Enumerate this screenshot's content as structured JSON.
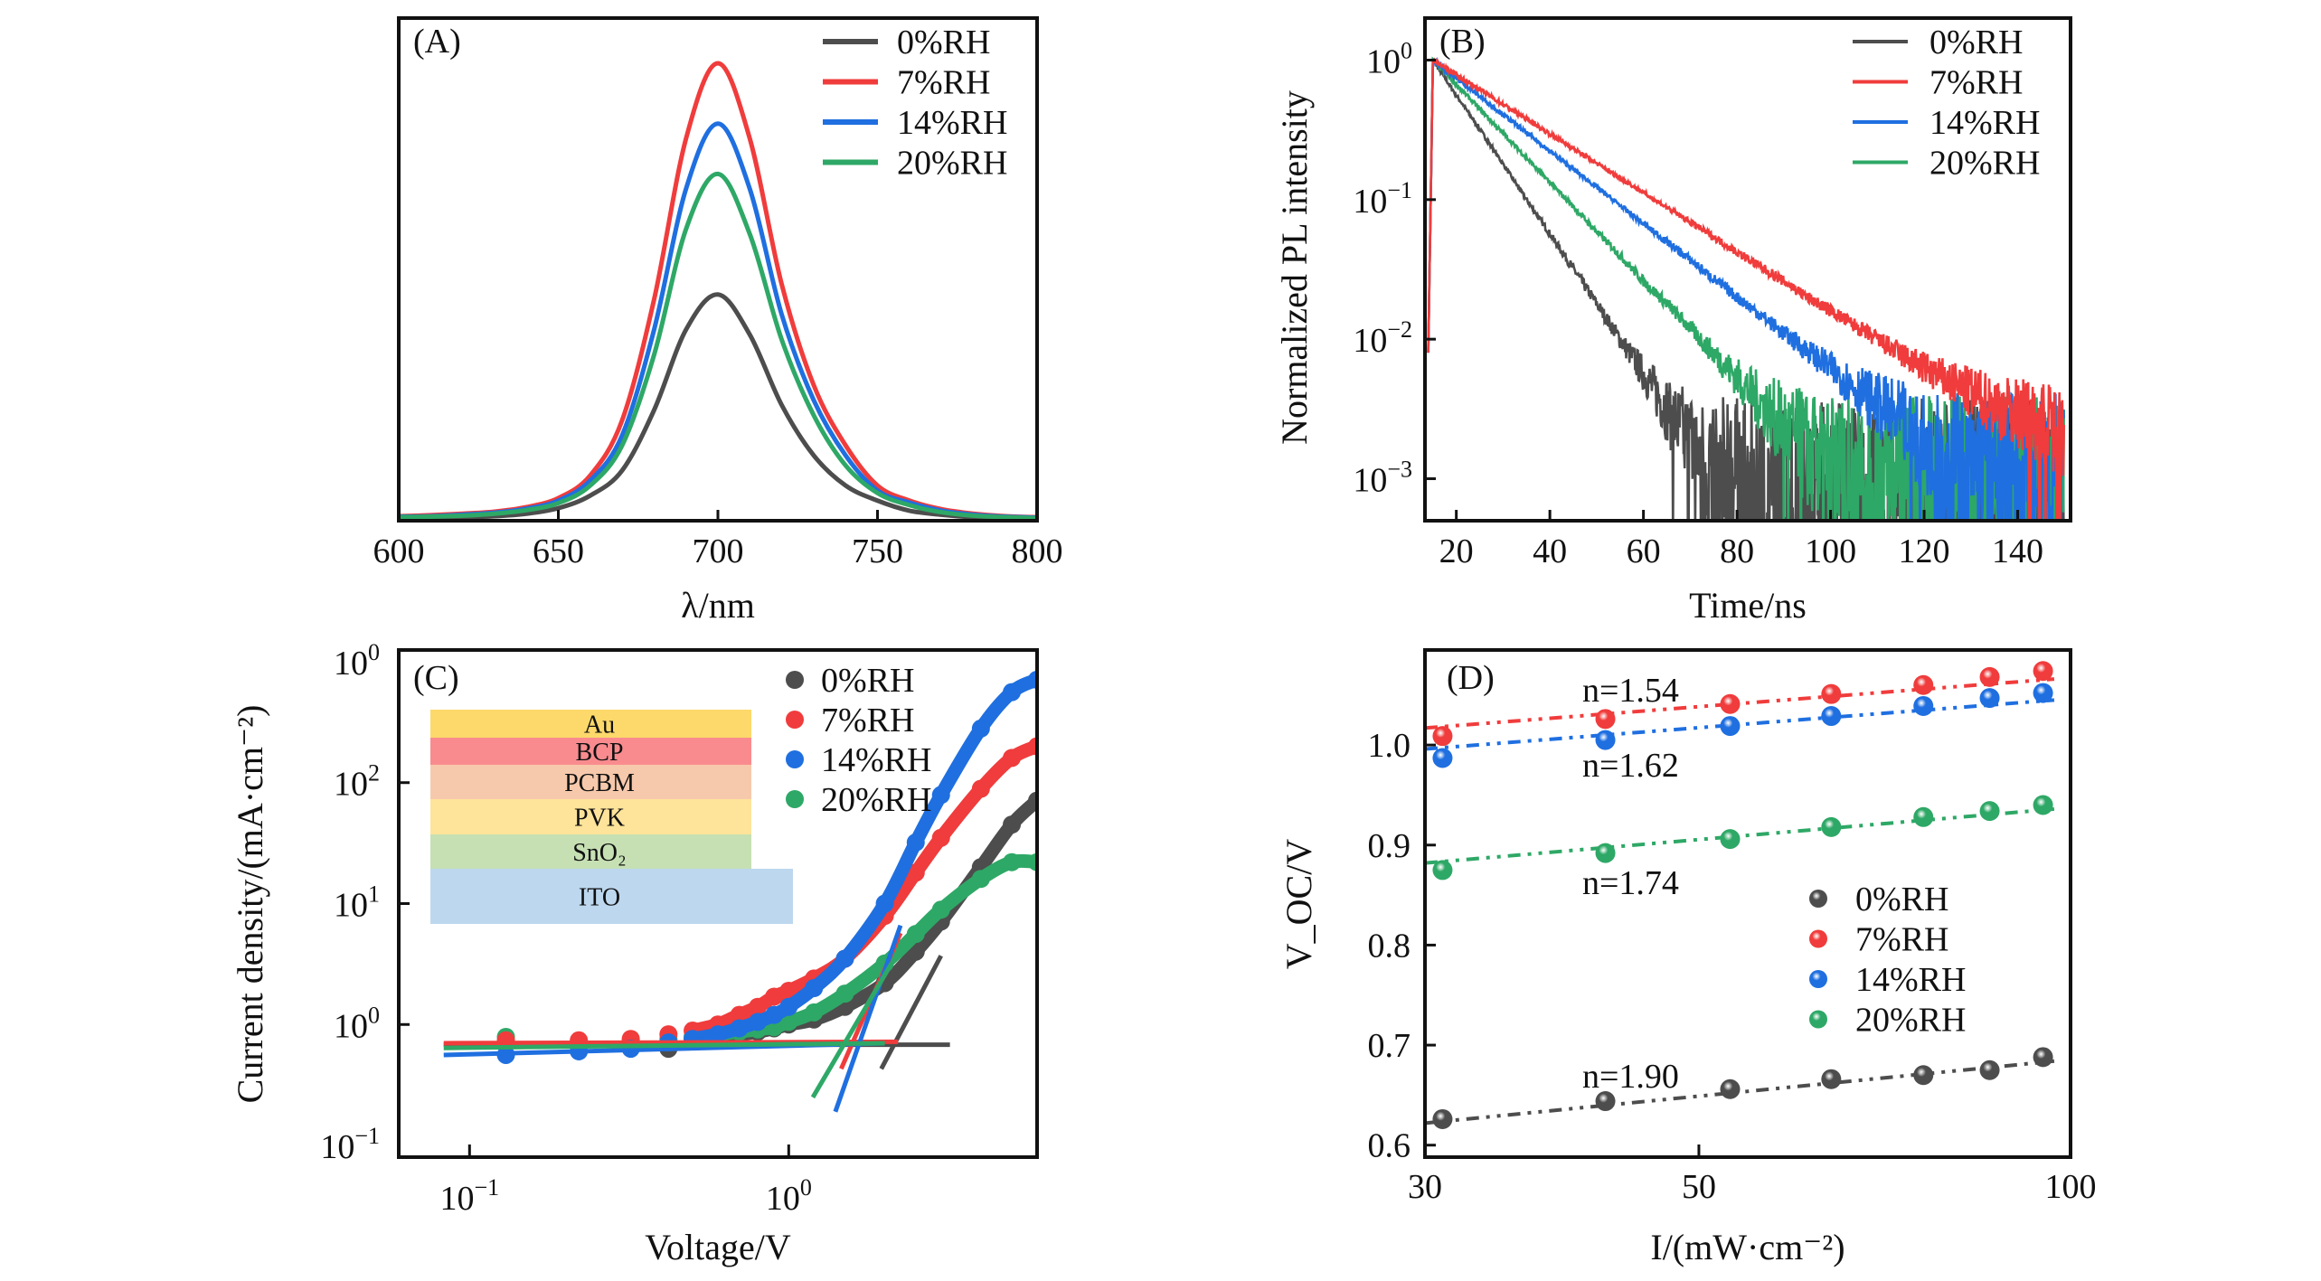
{
  "chart_data": [
    {
      "panel": "(A)",
      "type": "line",
      "xlabel": "λ/nm",
      "ylabel": "",
      "xlim": [
        600,
        800
      ],
      "ylim": [
        0,
        1
      ],
      "xticks": [
        "600",
        "650",
        "700",
        "750",
        "800"
      ],
      "legend_position": "top-right",
      "x": [
        600,
        610,
        620,
        630,
        640,
        650,
        660,
        670,
        680,
        690,
        700,
        710,
        720,
        730,
        740,
        750,
        760,
        770,
        780,
        790,
        800
      ],
      "series": [
        {
          "name": "0%RH",
          "color": "#4d4d4d",
          "values": [
            0.005,
            0.005,
            0.007,
            0.009,
            0.014,
            0.025,
            0.05,
            0.1,
            0.22,
            0.38,
            0.45,
            0.37,
            0.23,
            0.13,
            0.07,
            0.04,
            0.02,
            0.012,
            0.007,
            0.005,
            0.004
          ]
        },
        {
          "name": "7%RH",
          "color": "#f03c3c",
          "values": [
            0.009,
            0.011,
            0.014,
            0.018,
            0.027,
            0.045,
            0.09,
            0.2,
            0.44,
            0.76,
            0.91,
            0.76,
            0.47,
            0.27,
            0.15,
            0.07,
            0.04,
            0.023,
            0.014,
            0.009,
            0.007
          ]
        },
        {
          "name": "14%RH",
          "color": "#1f6fe0",
          "values": [
            0.008,
            0.009,
            0.012,
            0.016,
            0.024,
            0.04,
            0.08,
            0.17,
            0.38,
            0.66,
            0.79,
            0.66,
            0.41,
            0.24,
            0.13,
            0.06,
            0.036,
            0.02,
            0.012,
            0.008,
            0.006
          ]
        },
        {
          "name": "20%RH",
          "color": "#2ea866",
          "values": [
            0.007,
            0.008,
            0.01,
            0.014,
            0.021,
            0.035,
            0.07,
            0.15,
            0.33,
            0.58,
            0.69,
            0.57,
            0.36,
            0.21,
            0.11,
            0.055,
            0.031,
            0.017,
            0.01,
            0.007,
            0.005
          ]
        }
      ]
    },
    {
      "panel": "(B)",
      "type": "line",
      "xlabel": "Time/ns",
      "ylabel": "Normalized PL intensity",
      "xlim": [
        13.3,
        151.3
      ],
      "ylim": [
        0.0005,
        2.0
      ],
      "yscale": "log",
      "xticks": [
        "20",
        "40",
        "60",
        "80",
        "100",
        "120",
        "140"
      ],
      "yticks": [
        {
          "value": 1,
          "base": "10",
          "exp": "0"
        },
        {
          "value": 0.1,
          "base": "10",
          "exp": "-1"
        },
        {
          "value": 0.01,
          "base": "10",
          "exp": "-2"
        },
        {
          "value": 0.001,
          "base": "10",
          "exp": "-3"
        }
      ],
      "legend_position": "top-right",
      "x": [
        14,
        15,
        20,
        25,
        30,
        35,
        40,
        45,
        50,
        55,
        60,
        65,
        70,
        75,
        80,
        85,
        90,
        95,
        100,
        105,
        110,
        115,
        120,
        125,
        130,
        135,
        140,
        145,
        150
      ],
      "series": [
        {
          "name": "0%RH",
          "color": "#4d4d4d",
          "values": [
            0.008,
            1,
            0.56,
            0.32,
            0.18,
            0.1,
            0.057,
            0.032,
            0.018,
            0.01,
            0.0057,
            0.0032,
            0.0018,
            0.0012,
            0.001,
            0.0009,
            0.0008,
            0.0008,
            0.0008,
            0.0008,
            0.0008,
            0.0008,
            0.0008,
            0.0008,
            0.0008,
            0.0008,
            0.0008,
            0.0008,
            0.0008
          ]
        },
        {
          "name": "7%RH",
          "color": "#f03c3c",
          "values": [
            0.008,
            1,
            0.784,
            0.615,
            0.482,
            0.378,
            0.296,
            0.232,
            0.182,
            0.143,
            0.112,
            0.088,
            0.069,
            0.054,
            0.042,
            0.033,
            0.026,
            0.02,
            0.016,
            0.0126,
            0.0099,
            0.0078,
            0.0062,
            0.005,
            0.0041,
            0.0034,
            0.0029,
            0.0025,
            0.0022
          ]
        },
        {
          "name": "14%RH",
          "color": "#1f6fe0",
          "values": [
            0.008,
            1,
            0.741,
            0.549,
            0.407,
            0.301,
            0.223,
            0.165,
            0.123,
            0.091,
            0.067,
            0.05,
            0.037,
            0.027,
            0.02,
            0.015,
            0.011,
            0.0083,
            0.0062,
            0.0046,
            0.0034,
            0.0025,
            0.0019,
            0.0016,
            0.0014,
            0.0013,
            0.0012,
            0.0012,
            0.0012
          ]
        },
        {
          "name": "20%RH",
          "color": "#2ea866",
          "values": [
            0.008,
            1,
            0.668,
            0.446,
            0.298,
            0.199,
            0.133,
            0.089,
            0.059,
            0.04,
            0.026,
            0.018,
            0.012,
            0.0079,
            0.0053,
            0.0035,
            0.0024,
            0.0016,
            0.0013,
            0.0012,
            0.0012,
            0.0012,
            0.0012,
            0.0012,
            0.0012,
            0.0012,
            0.0012,
            0.0012,
            0.0012
          ]
        }
      ]
    },
    {
      "panel": "(C)",
      "type": "scatter",
      "xlabel": "Voltage/V",
      "ylabel": "Current density/(mA·cm⁻²)",
      "xscale": "log",
      "yscale": "log",
      "xlim": [
        0.06,
        6.0
      ],
      "ylim": [
        0.08,
        1250
      ],
      "xticks": [
        {
          "value": 0.1,
          "base": "10",
          "exp": "-1"
        },
        {
          "value": 1,
          "base": "10",
          "exp": "0"
        }
      ],
      "yticks": [
        {
          "value": 0.1,
          "base": "10",
          "exp": "-1"
        },
        {
          "value": 1,
          "base": "10",
          "exp": "0"
        },
        {
          "value": 10,
          "base": "10",
          "exp": "1"
        },
        {
          "value": 100,
          "base": "10",
          "exp": "2"
        },
        {
          "value": 1000,
          "base": "10",
          "exp": "0"
        }
      ],
      "legend_position": "top-right",
      "x": [
        0.13,
        0.22,
        0.32,
        0.42,
        0.5,
        0.6,
        0.7,
        0.8,
        0.9,
        1.0,
        1.2,
        1.5,
        2,
        2.5,
        3,
        4,
        5,
        6
      ],
      "series": [
        {
          "name": "0%RH",
          "color": "#4d4d4d",
          "values": [
            0.71,
            0.71,
            0.71,
            0.63,
            0.76,
            0.79,
            0.83,
            0.87,
            0.93,
            1.0,
            1.1,
            1.4,
            2.2,
            4.0,
            7.1,
            20,
            45,
            71
          ],
          "fits": [
            [
              [
                0.083,
                0.68
              ],
              [
                3.2,
                0.68
              ]
            ],
            [
              [
                1.95,
                0.43
              ],
              [
                3.0,
                3.7
              ]
            ]
          ]
        },
        {
          "name": "7%RH",
          "color": "#f03c3c",
          "values": [
            0.74,
            0.74,
            0.76,
            0.83,
            0.89,
            1.0,
            1.2,
            1.4,
            1.7,
            1.9,
            2.4,
            3.5,
            7.9,
            18,
            35,
            89,
            160,
            200
          ],
          "fits": [
            [
              [
                0.083,
                0.7
              ],
              [
                2.2,
                0.72
              ]
            ],
            [
              [
                1.46,
                0.43
              ],
              [
                2.24,
                5.7
              ]
            ]
          ]
        },
        {
          "name": "14%RH",
          "color": "#1f6fe0",
          "values": [
            0.56,
            0.6,
            0.63,
            0.71,
            0.76,
            0.83,
            0.93,
            1.05,
            1.2,
            1.4,
            2.0,
            3.5,
            10,
            32,
            79,
            280,
            560,
            710
          ],
          "fits": [
            [
              [
                0.083,
                0.56
              ],
              [
                2.0,
                0.7
              ]
            ],
            [
              [
                1.4,
                0.19
              ],
              [
                2.24,
                6.6
              ]
            ]
          ]
        },
        {
          "name": "20%RH",
          "color": "#2ea866",
          "values": [
            0.79,
            0.71,
            0.74,
            0.76,
            0.79,
            0.83,
            0.87,
            0.91,
            0.95,
            1.05,
            1.26,
            1.8,
            3.2,
            5.6,
            8.9,
            16,
            22,
            22
          ],
          "fits": [
            [
              [
                0.083,
                0.64
              ],
              [
                2.0,
                0.7
              ]
            ],
            [
              [
                1.19,
                0.25
              ],
              [
                2.1,
                3.2
              ]
            ]
          ]
        }
      ],
      "inset_layers": [
        {
          "label": "Au",
          "color": "#fcd96a"
        },
        {
          "label": "BCP",
          "color": "#f98b8e"
        },
        {
          "label": "PCBM",
          "color": "#f7c9ac"
        },
        {
          "label": "PVK",
          "color": "#fde49a"
        },
        {
          "label": "SnO₂",
          "color": "#c6e0b4"
        },
        {
          "label": "ITO",
          "color": "#bdd7ee"
        }
      ]
    },
    {
      "panel": "(D)",
      "type": "scatter",
      "xlabel": "I/(mW·cm⁻²)",
      "ylabel": "V_OC/V",
      "xscale": "log",
      "xlim": [
        30,
        100
      ],
      "ylim": [
        0.588,
        1.095
      ],
      "xticks": [
        "30",
        "50",
        "100"
      ],
      "yticks": [
        "0.6",
        "0.7",
        "0.8",
        "0.9",
        "1.0"
      ],
      "legend_position": "center-right",
      "x": [
        31,
        42,
        53,
        64,
        76,
        86,
        95
      ],
      "series": [
        {
          "name": "0%RH",
          "color": "#4d4d4d",
          "values": [
            0.626,
            0.644,
            0.656,
            0.666,
            0.67,
            0.675,
            0.688
          ],
          "fit": [
            0.622,
            0.684
          ],
          "annotation": "n=1.90"
        },
        {
          "name": "7%RH",
          "color": "#f03c3c",
          "values": [
            1.009,
            1.026,
            1.041,
            1.051,
            1.06,
            1.068,
            1.074
          ],
          "fit": [
            1.017,
            1.066
          ],
          "annotation": "n=1.54"
        },
        {
          "name": "14%RH",
          "color": "#1f6fe0",
          "values": [
            0.987,
            1.005,
            1.019,
            1.029,
            1.039,
            1.047,
            1.052
          ],
          "fit": [
            0.996,
            1.045
          ],
          "annotation": "n=1.62"
        },
        {
          "name": "20%RH",
          "color": "#2ea866",
          "values": [
            0.875,
            0.892,
            0.906,
            0.918,
            0.928,
            0.934,
            0.94
          ],
          "fit": [
            0.882,
            0.936
          ],
          "annotation": "n=1.74"
        }
      ]
    }
  ]
}
